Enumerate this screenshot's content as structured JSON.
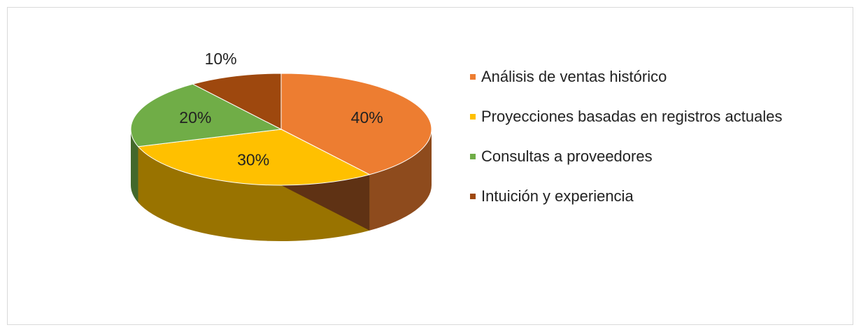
{
  "chart_data": {
    "type": "pie",
    "categories": [
      "Análisis de ventas histórico",
      "Proyecciones basadas en registros actuales",
      "Consultas a proveedores",
      "Intuición y experiencia"
    ],
    "values": [
      40,
      30,
      20,
      10
    ],
    "value_labels": [
      "40%",
      "30%",
      "20%",
      "10%"
    ],
    "colors": [
      "#ed7d31",
      "#ffc000",
      "#70ad47",
      "#9e480e"
    ],
    "legend": "right"
  }
}
